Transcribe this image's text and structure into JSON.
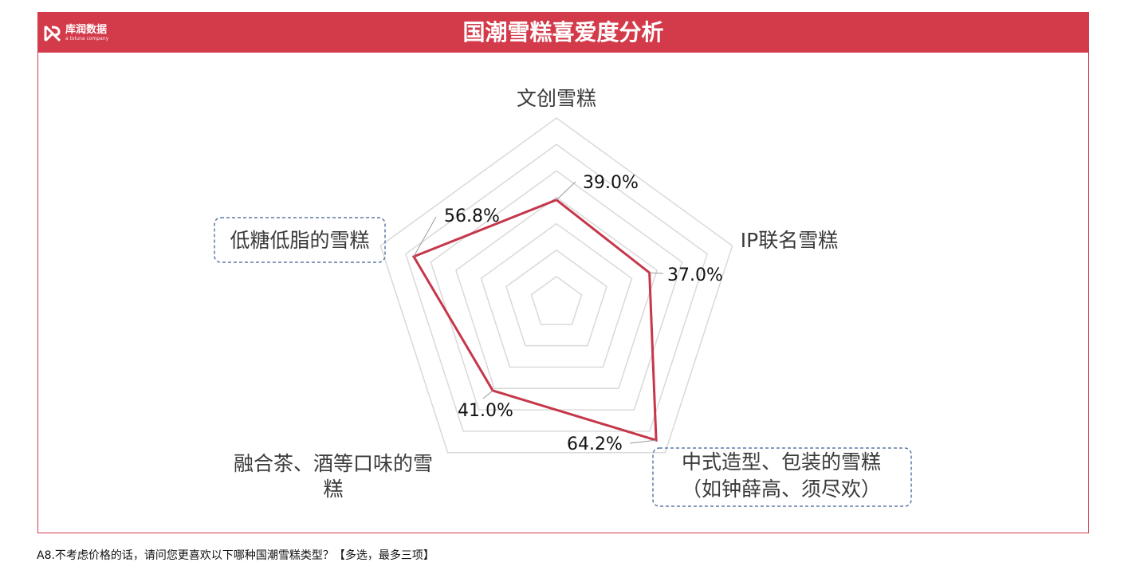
{
  "header": {
    "title": "国潮雪糕喜爱度分析",
    "brand_name": "库润数据",
    "brand_tagline": "a toluna company",
    "brand_color": "#d33a4a"
  },
  "chart_data": {
    "type": "radar",
    "axes": [
      "文创雪糕",
      "IP联名雪糕",
      "中式造型、包装的雪糕（如钟薛高、须尽欢）",
      "融合茶、酒等口味的雪糕",
      "低糖低脂的雪糕"
    ],
    "series": [
      {
        "values": [
          39.0,
          37.0,
          64.2,
          41.0,
          56.8
        ],
        "color": "#c6374a"
      }
    ],
    "value_labels": [
      "39.0%",
      "37.0%",
      "64.2%",
      "41.0%",
      "56.8%"
    ],
    "range": [
      0,
      70
    ],
    "grid_levels": 7,
    "highlighted_axes": [
      2,
      4
    ]
  },
  "footnote": "A8.不考虑价格的话，请问您更喜欢以下哪种国潮雪糕类型？【多选，最多三项】"
}
